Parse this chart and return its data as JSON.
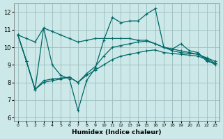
{
  "xlabel": "Humidex (Indice chaleur)",
  "bg_color": "#cce8e8",
  "grid_color": "#9dbdbd",
  "line_color": "#006868",
  "xlim": [
    -0.5,
    23.5
  ],
  "ylim": [
    5.8,
    12.5
  ],
  "xticks": [
    0,
    1,
    2,
    3,
    4,
    5,
    6,
    7,
    8,
    9,
    10,
    11,
    12,
    13,
    14,
    15,
    16,
    17,
    18,
    19,
    20,
    21,
    22,
    23
  ],
  "yticks": [
    6,
    7,
    8,
    9,
    10,
    11,
    12
  ],
  "series": [
    [
      10.7,
      9.2,
      7.6,
      11.1,
      9.0,
      8.4,
      8.2,
      6.4,
      8.1,
      8.8,
      10.4,
      11.7,
      11.4,
      11.5,
      11.5,
      11.9,
      12.2,
      10.0,
      9.9,
      10.2,
      9.8,
      9.7,
      9.2,
      9.1
    ],
    [
      10.7,
      10.5,
      10.3,
      11.1,
      10.9,
      10.7,
      10.5,
      10.3,
      10.4,
      10.5,
      10.5,
      10.5,
      10.5,
      10.5,
      10.4,
      10.4,
      10.2,
      10.0,
      9.9,
      9.8,
      9.7,
      9.6,
      9.4,
      9.2
    ],
    [
      10.7,
      9.2,
      7.6,
      8.0,
      8.1,
      8.2,
      8.3,
      8.0,
      8.4,
      8.7,
      9.0,
      9.3,
      9.5,
      9.6,
      9.7,
      9.8,
      9.85,
      9.7,
      9.65,
      9.6,
      9.55,
      9.5,
      9.3,
      9.0
    ],
    [
      10.7,
      9.2,
      7.6,
      8.1,
      8.2,
      8.25,
      8.3,
      8.0,
      8.5,
      8.9,
      9.5,
      10.0,
      10.1,
      10.2,
      10.3,
      10.35,
      10.2,
      10.0,
      9.8,
      9.7,
      9.65,
      9.6,
      9.35,
      9.1
    ]
  ]
}
